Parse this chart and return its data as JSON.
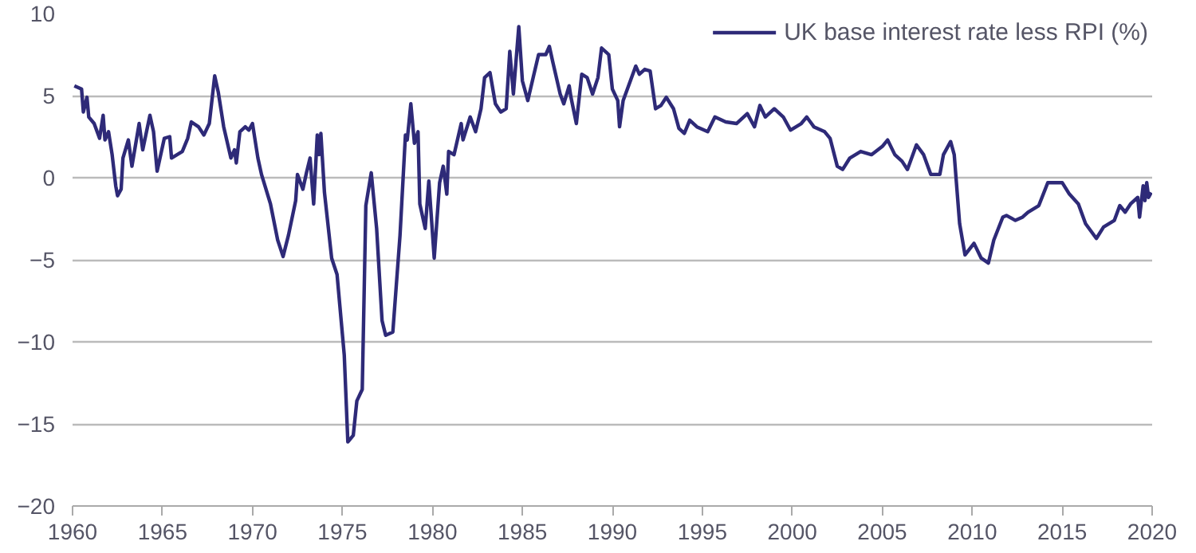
{
  "chart_data": {
    "type": "line",
    "xlim": [
      1960,
      2020
    ],
    "xticks": [
      1960,
      1965,
      1970,
      1975,
      1980,
      1985,
      1990,
      1995,
      2000,
      2005,
      2010,
      2015,
      2020
    ],
    "ylim": [
      -20,
      10
    ],
    "yticks": [
      -20,
      -15,
      -10,
      -5,
      0,
      5,
      10
    ],
    "grid": "y",
    "legend": "top right",
    "marker": "none",
    "line_style": "solid",
    "series": [
      {
        "name": "UK base interest rate less RPI (%)",
        "color": "#2e2a78",
        "x": [
          1960.1,
          1960.5,
          1960.6,
          1960.8,
          1960.9,
          1961.2,
          1961.5,
          1961.7,
          1961.8,
          1962,
          1962.2,
          1962.4,
          1962.5,
          1962.7,
          1962.8,
          1963.1,
          1963.3,
          1963.7,
          1963.9,
          1964.3,
          1964.5,
          1964.7,
          1965.1,
          1965.4,
          1965.5,
          1966.1,
          1966.4,
          1966.6,
          1967,
          1967.3,
          1967.6,
          1967.9,
          1968.1,
          1968.4,
          1968.8,
          1969,
          1969.1,
          1969.3,
          1969.6,
          1969.8,
          1970,
          1970.3,
          1970.5,
          1971,
          1971.4,
          1971.7,
          1972,
          1972.4,
          1972.5,
          1972.8,
          1973,
          1973.2,
          1973.4,
          1973.6,
          1973.7,
          1973.8,
          1974,
          1974.4,
          1974.7,
          1975.1,
          1975.3,
          1975.6,
          1975.8,
          1976.1,
          1976.3,
          1976.6,
          1976.9,
          1977.2,
          1977.4,
          1977.8,
          1978.2,
          1978.5,
          1978.6,
          1978.8,
          1979,
          1979.2,
          1979.3,
          1979.6,
          1979.8,
          1980.1,
          1980.4,
          1980.6,
          1980.8,
          1980.9,
          1981.2,
          1981.6,
          1981.7,
          1982.1,
          1982.4,
          1982.7,
          1982.9,
          1983.2,
          1983.5,
          1983.8,
          1984.1,
          1984.3,
          1984.5,
          1984.8,
          1985,
          1985.3,
          1985.6,
          1985.9,
          1986.3,
          1986.5,
          1986.7,
          1987.1,
          1987.3,
          1987.6,
          1987.7,
          1988,
          1988.3,
          1988.6,
          1988.9,
          1989.2,
          1989.4,
          1989.8,
          1990,
          1990.3,
          1990.4,
          1990.6,
          1990.9,
          1991.3,
          1991.5,
          1991.8,
          1992.1,
          1992.4,
          1992.7,
          1993,
          1993.4,
          1993.7,
          1994,
          1994.3,
          1994.7,
          1995.3,
          1995.7,
          1996.3,
          1996.9,
          1997.5,
          1997.9,
          1998.2,
          1998.5,
          1999,
          1999.5,
          1999.9,
          2000.5,
          2000.8,
          2001.2,
          2001.8,
          2002.1,
          2002.5,
          2002.8,
          2003.2,
          2003.8,
          2004.4,
          2005,
          2005.3,
          2005.7,
          2006.1,
          2006.4,
          2006.9,
          2007.3,
          2007.7,
          2008.2,
          2008.4,
          2008.8,
          2009,
          2009.3,
          2009.6,
          2010.1,
          2010.5,
          2010.9,
          2011.2,
          2011.7,
          2011.9,
          2012.4,
          2012.8,
          2013.1,
          2013.7,
          2014.2,
          2014.8,
          2015,
          2015.4,
          2015.9,
          2016.3,
          2016.9,
          2017.3,
          2017.9,
          2018.2,
          2018.5,
          2018.8,
          2019.2,
          2019.3,
          2019.5,
          2019.6,
          2019.7,
          2019.8,
          2019.95
        ],
        "values": [
          5.6,
          5.4,
          4.0,
          4.9,
          3.7,
          3.3,
          2.4,
          3.8,
          2.3,
          2.8,
          1.4,
          -0.5,
          -1.1,
          -0.7,
          1.2,
          2.3,
          0.7,
          3.3,
          1.7,
          3.8,
          2.8,
          0.4,
          2.4,
          2.5,
          1.2,
          1.6,
          2.4,
          3.4,
          3.1,
          2.6,
          3.3,
          6.2,
          5.2,
          3.1,
          1.2,
          1.7,
          0.9,
          2.8,
          3.1,
          2.9,
          3.3,
          1.2,
          0.2,
          -1.6,
          -3.8,
          -4.8,
          -3.5,
          -1.4,
          0.2,
          -0.7,
          0.3,
          1.2,
          -1.6,
          2.6,
          1.4,
          2.7,
          -0.9,
          -4.9,
          -5.9,
          -10.8,
          -16.1,
          -15.7,
          -13.6,
          -12.9,
          -1.7,
          0.3,
          -3.1,
          -8.7,
          -9.6,
          -9.4,
          -3.5,
          2.6,
          2.3,
          4.5,
          2.1,
          2.8,
          -1.6,
          -3.1,
          -0.2,
          -4.9,
          -0.3,
          0.7,
          -1.0,
          1.6,
          1.4,
          3.3,
          2.3,
          3.7,
          2.8,
          4.2,
          6.1,
          6.4,
          4.5,
          4.0,
          4.2,
          7.7,
          5.1,
          9.2,
          5.9,
          4.7,
          6.1,
          7.5,
          7.5,
          8.0,
          7.0,
          5.1,
          4.5,
          5.6,
          4.9,
          3.3,
          6.3,
          6.1,
          5.1,
          6.1,
          7.9,
          7.5,
          5.4,
          4.7,
          3.1,
          4.7,
          5.6,
          6.8,
          6.3,
          6.6,
          6.5,
          4.2,
          4.4,
          4.9,
          4.2,
          3.0,
          2.7,
          3.5,
          3.1,
          2.8,
          3.7,
          3.4,
          3.3,
          3.9,
          3.1,
          4.4,
          3.7,
          4.2,
          3.7,
          2.9,
          3.3,
          3.7,
          3.1,
          2.8,
          2.4,
          0.7,
          0.5,
          1.2,
          1.6,
          1.4,
          1.9,
          2.3,
          1.4,
          1.0,
          0.5,
          2.0,
          1.4,
          0.2,
          0.2,
          1.4,
          2.2,
          1.4,
          -2.8,
          -4.7,
          -4.0,
          -4.9,
          -5.2,
          -3.8,
          -2.4,
          -2.3,
          -2.6,
          -2.4,
          -2.1,
          -1.7,
          -0.3,
          -0.3,
          -0.3,
          -1.0,
          -1.6,
          -2.8,
          -3.7,
          -3.0,
          -2.6,
          -1.7,
          -2.1,
          -1.6,
          -1.2,
          -2.4,
          -0.5,
          -1.4,
          -0.3,
          -1.2,
          -0.9
        ]
      }
    ]
  }
}
